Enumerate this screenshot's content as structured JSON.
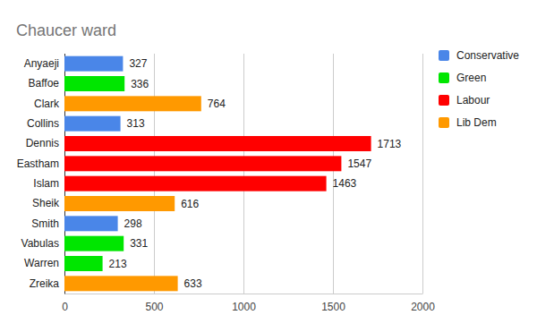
{
  "chart_data": {
    "type": "bar",
    "title": "Chaucer ward",
    "orientation": "horizontal",
    "categories": [
      "Anyaeji",
      "Baffoe",
      "Clark",
      "Collins",
      "Dennis",
      "Eastham",
      "Islam",
      "Sheik",
      "Smith",
      "Vabulas",
      "Warren",
      "Zreika"
    ],
    "series": [
      {
        "name": "Conservative",
        "color": "#4a86e8",
        "values": [
          327,
          null,
          null,
          313,
          null,
          null,
          null,
          null,
          298,
          null,
          null,
          null
        ]
      },
      {
        "name": "Green",
        "color": "#00e600",
        "values": [
          null,
          336,
          null,
          null,
          null,
          null,
          null,
          null,
          null,
          331,
          213,
          null
        ]
      },
      {
        "name": "Labour",
        "color": "#ff0000",
        "values": [
          null,
          null,
          null,
          null,
          1713,
          1547,
          1463,
          null,
          null,
          null,
          null,
          null
        ]
      },
      {
        "name": "Lib Dem",
        "color": "#ff9900",
        "values": [
          null,
          null,
          764,
          null,
          null,
          null,
          null,
          616,
          null,
          null,
          null,
          633
        ]
      }
    ],
    "xlim": [
      0,
      2000
    ],
    "xticks": [
      0,
      500,
      1000,
      1500,
      2000
    ],
    "grid": true,
    "data_labels": true,
    "legend": "right"
  }
}
